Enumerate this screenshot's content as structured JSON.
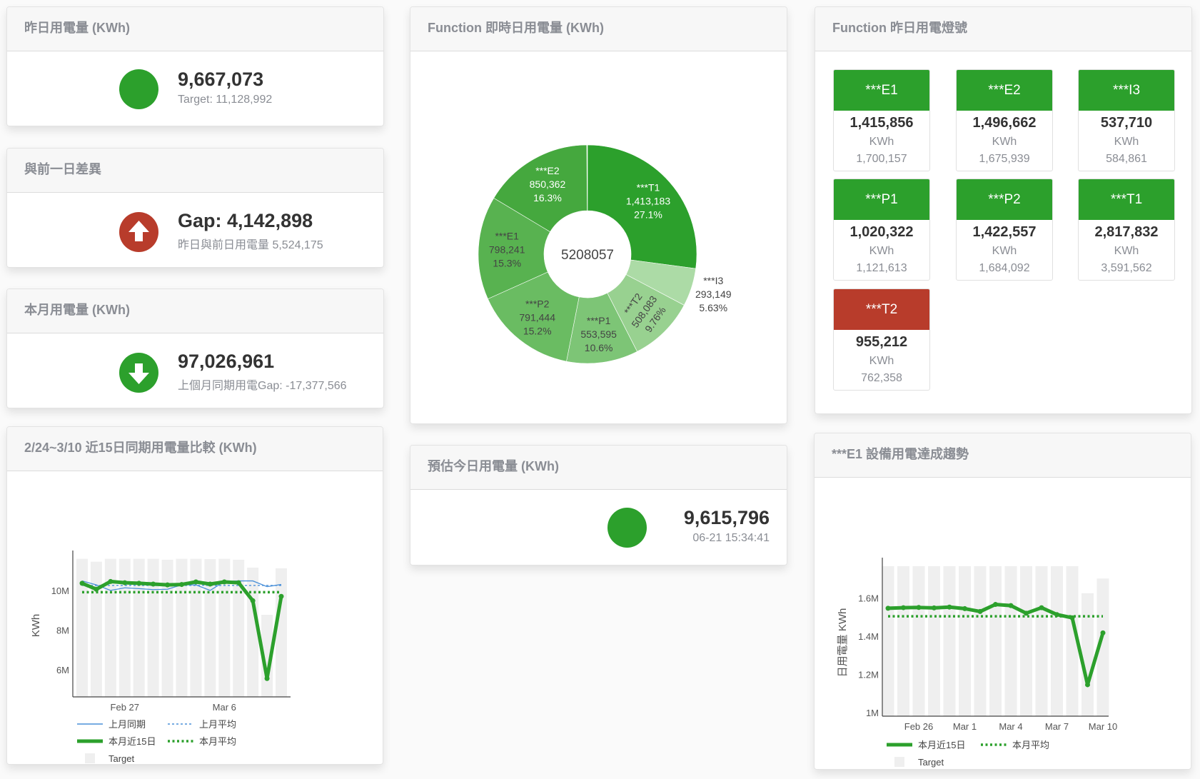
{
  "colors": {
    "green": "#2ca02c",
    "red": "#b83c2b",
    "target_bar": "#efefef",
    "last_month_line": "#4a90d9"
  },
  "yesterday": {
    "title": "昨日用電量 (KWh)",
    "value": "9,667,073",
    "sub": "Target: 11,128,992",
    "status_icon": "green-dot-icon"
  },
  "diff": {
    "title": "與前一日差異",
    "value": "Gap: 4,142,898",
    "sub": "昨日與前日用電量 5,524,175",
    "status_icon": "arrow-up-circle-icon"
  },
  "month": {
    "title": "本月用電量 (KWh)",
    "value": "97,026,961",
    "sub": "上個月同期用電Gap: -17,377,566",
    "status_icon": "arrow-down-circle-icon"
  },
  "realtime": {
    "title": "Function 即時日用電量 (KWh)",
    "total": "5208057",
    "slices": [
      {
        "name": "***T1",
        "value": "1,413,183",
        "pct": "27.1%",
        "fraction": 0.271,
        "color": "#2ca02c",
        "text": "#ffffff"
      },
      {
        "name": "***I3",
        "value": "293,149",
        "pct": "5.63%",
        "fraction": 0.0563,
        "color": "#acdba6",
        "text": "#444444"
      },
      {
        "name": "***T2",
        "value": "508,083",
        "pct": "9.76%",
        "fraction": 0.0976,
        "color": "#98d190",
        "text": "#444444"
      },
      {
        "name": "***P1",
        "value": "553,595",
        "pct": "10.6%",
        "fraction": 0.106,
        "color": "#7dc576",
        "text": "#444444"
      },
      {
        "name": "***P2",
        "value": "791,444",
        "pct": "15.2%",
        "fraction": 0.152,
        "color": "#6abc62",
        "text": "#444444"
      },
      {
        "name": "***E1",
        "value": "798,241",
        "pct": "15.3%",
        "fraction": 0.153,
        "color": "#58b250",
        "text": "#444444"
      },
      {
        "name": "***E2",
        "value": "850,362",
        "pct": "16.3%",
        "fraction": 0.163,
        "color": "#45a83e",
        "text": "#ffffff"
      }
    ]
  },
  "lights": {
    "title": "Function 昨日用電燈號",
    "unit": "KWh",
    "items": [
      {
        "name": "***E1",
        "value": "1,415,856",
        "prev": "1,700,157",
        "status": "green"
      },
      {
        "name": "***E2",
        "value": "1,496,662",
        "prev": "1,675,939",
        "status": "green"
      },
      {
        "name": "***I3",
        "value": "537,710",
        "prev": "584,861",
        "status": "green"
      },
      {
        "name": "***P1",
        "value": "1,020,322",
        "prev": "1,121,613",
        "status": "green"
      },
      {
        "name": "***P2",
        "value": "1,422,557",
        "prev": "1,684,092",
        "status": "green"
      },
      {
        "name": "***T1",
        "value": "2,817,832",
        "prev": "3,591,562",
        "status": "green"
      },
      {
        "name": "***T2",
        "value": "955,212",
        "prev": "762,358",
        "status": "red"
      }
    ]
  },
  "estimate": {
    "title": "預估今日用電量 (KWh)",
    "value": "9,615,796",
    "time": "06-21 15:34:41",
    "status_icon": "green-dot-icon"
  },
  "chart_data": [
    {
      "type": "line",
      "title": "2/24~3/10 近15日同期用電量比較 (KWh)",
      "ylabel": "KWh",
      "x": [
        "Feb 24",
        "Feb 25",
        "Feb 26",
        "Feb 27",
        "Feb 28",
        "Mar 1",
        "Mar 2",
        "Mar 3",
        "Mar 4",
        "Mar 5",
        "Mar 6",
        "Mar 7",
        "Mar 8",
        "Mar 9",
        "Mar 10"
      ],
      "xticks": [
        {
          "index": 3,
          "label": "Feb 27"
        },
        {
          "index": 10,
          "label": "Mar 6"
        }
      ],
      "yticks": [
        {
          "value": 6000000,
          "label": "6M"
        },
        {
          "value": 8000000,
          "label": "8M"
        },
        {
          "value": 10000000,
          "label": "10M"
        }
      ],
      "ylim": [
        4620000,
        11800000
      ],
      "grid": false,
      "legend_position": "bottom",
      "series": [
        {
          "name": "上月同期",
          "kind": "line",
          "values": [
            10480000,
            10280000,
            10000000,
            10130000,
            10090000,
            10040000,
            10060000,
            10280000,
            10280000,
            10000000,
            10450000,
            10480000,
            10480000,
            10190000,
            10300000
          ]
        },
        {
          "name": "上月平均",
          "kind": "dashed",
          "values": [
            10250000,
            10250000,
            10250000,
            10250000,
            10250000,
            10250000,
            10250000,
            10250000,
            10250000,
            10250000,
            10250000,
            10250000,
            10250000,
            10250000,
            10250000
          ]
        },
        {
          "name": "本月近15日",
          "kind": "thick",
          "values": [
            10360000,
            10060000,
            10450000,
            10390000,
            10360000,
            10320000,
            10280000,
            10300000,
            10430000,
            10320000,
            10430000,
            10390000,
            9480000,
            5550000,
            9700000
          ]
        },
        {
          "name": "本月平均",
          "kind": "dotted",
          "values": [
            9910000,
            9910000,
            9910000,
            9910000,
            9910000,
            9910000,
            9910000,
            9910000,
            9910000,
            9910000,
            9910000,
            9910000,
            9910000,
            9910000,
            9910000
          ]
        },
        {
          "name": "Target",
          "kind": "bar",
          "values": [
            11600000,
            11450000,
            11600000,
            11600000,
            11600000,
            11600000,
            11550000,
            11600000,
            11600000,
            11580000,
            11600000,
            11550000,
            11150000,
            8770000,
            11120000
          ]
        }
      ]
    },
    {
      "type": "line",
      "title": "***E1 設備用電達成趨勢",
      "ylabel": "日用電量 KWh",
      "x": [
        "Feb 24",
        "Feb 25",
        "Feb 26",
        "Feb 27",
        "Feb 28",
        "Mar 1",
        "Mar 2",
        "Mar 3",
        "Mar 4",
        "Mar 5",
        "Mar 6",
        "Mar 7",
        "Mar 8",
        "Mar 9",
        "Mar 10"
      ],
      "xticks": [
        {
          "index": 2,
          "label": "Feb 26"
        },
        {
          "index": 5,
          "label": "Mar 1"
        },
        {
          "index": 8,
          "label": "Mar 4"
        },
        {
          "index": 11,
          "label": "Mar 7"
        },
        {
          "index": 14,
          "label": "Mar 10"
        }
      ],
      "yticks": [
        {
          "value": 1000000,
          "label": "1M"
        },
        {
          "value": 1200000,
          "label": "1.2M"
        },
        {
          "value": 1400000,
          "label": "1.4M"
        },
        {
          "value": 1600000,
          "label": "1.6M"
        }
      ],
      "ylim": [
        981000,
        1790000
      ],
      "grid": false,
      "legend_position": "bottom",
      "series": [
        {
          "name": "本月近15日",
          "kind": "thick",
          "values": [
            1547000,
            1550000,
            1551000,
            1549000,
            1553000,
            1545000,
            1530000,
            1567000,
            1561000,
            1521000,
            1550000,
            1514000,
            1497000,
            1146000,
            1418000
          ]
        },
        {
          "name": "本月平均",
          "kind": "dotted",
          "values": [
            1505000,
            1505000,
            1505000,
            1505000,
            1505000,
            1505000,
            1505000,
            1505000,
            1505000,
            1505000,
            1505000,
            1505000,
            1505000,
            1505000,
            1505000
          ]
        },
        {
          "name": "Target",
          "kind": "bar",
          "values": [
            1768000,
            1768000,
            1768000,
            1768000,
            1768000,
            1768000,
            1768000,
            1768000,
            1768000,
            1768000,
            1768000,
            1768000,
            1768000,
            1626000,
            1703000
          ]
        }
      ]
    }
  ]
}
